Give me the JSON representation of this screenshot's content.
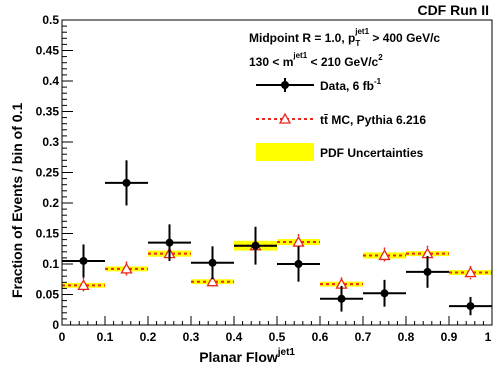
{
  "chart_data": {
    "type": "scatter",
    "experiment_label": "CDF Run II",
    "xlabel": "Planar Flow",
    "xlabel_sup": "jet1",
    "ylabel": "Fraction of Events / bin of 0.1",
    "xlim": [
      0,
      1
    ],
    "ylim": [
      0,
      0.5
    ],
    "x_ticks": [
      "0",
      "0.1",
      "0.2",
      "0.3",
      "0.4",
      "0.5",
      "0.6",
      "0.7",
      "0.8",
      "0.9",
      "1"
    ],
    "y_ticks": [
      "0",
      "0.05",
      "0.1",
      "0.15",
      "0.2",
      "0.25",
      "0.3",
      "0.35",
      "0.4",
      "0.45",
      "0.5"
    ],
    "grid": false,
    "legend_placement": "top-right",
    "annotations": {
      "line1_prefix": "Midpoint R = 1.0, p",
      "line1_sub": "T",
      "line1_sup": "jet1",
      "line1_suffix": " > 400 GeV/c",
      "line2_prefix": "130 < m",
      "line2_sup": "jet1",
      "line2_mid": " < 210 GeV/c",
      "line2_sup2": "2"
    },
    "legend": {
      "data_label": "Data, 6 fb",
      "data_label_sup": "-1",
      "mc_label": "tt̄ MC, Pythia 6.216",
      "band_label": "PDF Uncertainties"
    },
    "bin_edges": [
      0,
      0.1,
      0.2,
      0.3,
      0.4,
      0.5,
      0.6,
      0.7,
      0.8,
      0.9,
      1.0
    ],
    "data": {
      "x": [
        0.05,
        0.15,
        0.25,
        0.35,
        0.45,
        0.55,
        0.65,
        0.75,
        0.85,
        0.95
      ],
      "y": [
        0.105,
        0.233,
        0.135,
        0.102,
        0.13,
        0.1,
        0.043,
        0.052,
        0.087,
        0.031
      ],
      "yerr": [
        0.027,
        0.037,
        0.03,
        0.027,
        0.031,
        0.029,
        0.021,
        0.022,
        0.026,
        0.015
      ]
    },
    "mc": {
      "x": [
        0.05,
        0.15,
        0.25,
        0.35,
        0.45,
        0.55,
        0.65,
        0.75,
        0.85,
        0.95
      ],
      "y": [
        0.065,
        0.092,
        0.117,
        0.071,
        0.13,
        0.136,
        0.067,
        0.114,
        0.117,
        0.086
      ],
      "yerr": [
        0.013,
        0.012,
        0.013,
        0.01,
        0.014,
        0.013,
        0.011,
        0.013,
        0.013,
        0.011
      ],
      "band_half_width": [
        0.004,
        0.004,
        0.005,
        0.004,
        0.008,
        0.005,
        0.004,
        0.005,
        0.004,
        0.004
      ]
    },
    "colors": {
      "data": "#000000",
      "mc": "#e8271b",
      "band": "#ffff00"
    }
  }
}
